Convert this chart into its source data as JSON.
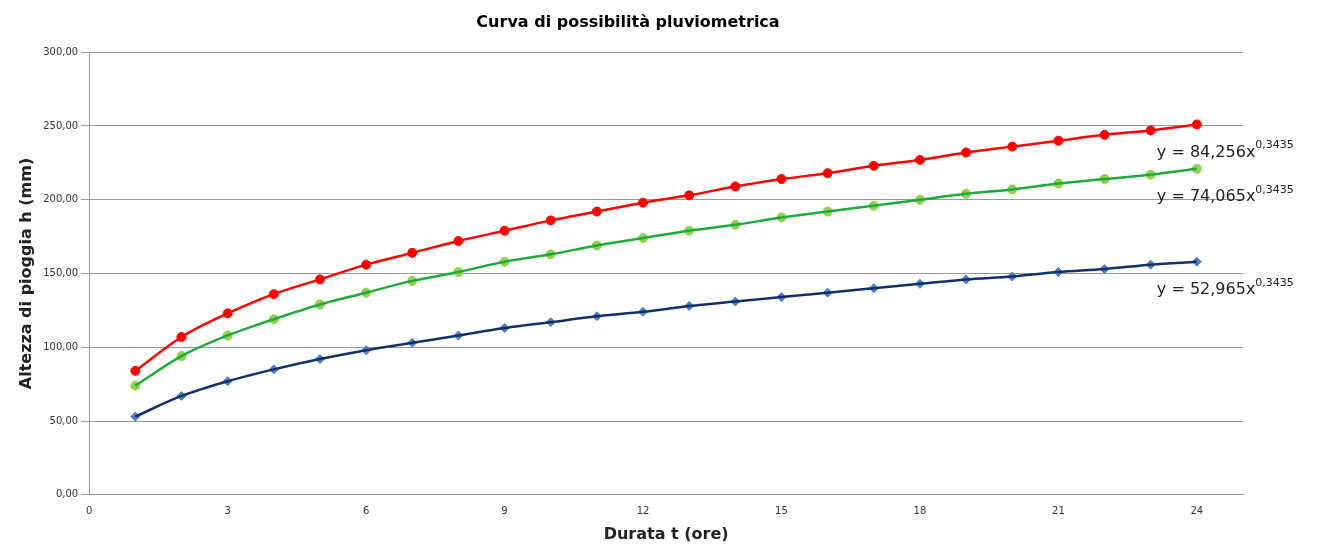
{
  "chart_data": {
    "type": "scatter",
    "title": "Curva di possibilità pluviometrica",
    "xlabel": "Durata t (ore)",
    "ylabel": "Altezza di pioggia h (mm)",
    "x": [
      1,
      2,
      3,
      4,
      5,
      6,
      7,
      8,
      9,
      10,
      11,
      12,
      13,
      14,
      15,
      16,
      17,
      18,
      19,
      20,
      21,
      22,
      23,
      24
    ],
    "series": [
      {
        "type": "line",
        "color": "#ff0000",
        "marker": "none",
        "values": [
          84,
          107,
          123,
          136,
          146,
          156,
          164,
          172,
          179,
          186,
          192,
          198,
          203,
          209,
          214,
          218,
          223,
          227,
          232,
          236,
          240,
          244,
          247,
          251
        ]
      },
      {
        "color": "#ff0000",
        "marker": "circle",
        "values": [
          84,
          107,
          123,
          136,
          146,
          156,
          164,
          172,
          179,
          186,
          192,
          198,
          203,
          209,
          214,
          218,
          223,
          227,
          232,
          236,
          240,
          244,
          247,
          251
        ]
      },
      {
        "type": "line",
        "color": "#1faa3c",
        "marker": "none",
        "values": [
          74,
          94,
          108,
          119,
          129,
          137,
          145,
          151,
          158,
          163,
          169,
          174,
          179,
          183,
          188,
          192,
          196,
          200,
          204,
          207,
          211,
          214,
          217,
          221
        ]
      },
      {
        "color": "#92d050",
        "marker": "circle",
        "values": [
          74,
          94,
          108,
          119,
          129,
          137,
          145,
          151,
          158,
          163,
          169,
          174,
          179,
          183,
          188,
          192,
          196,
          200,
          204,
          207,
          211,
          214,
          217,
          221
        ]
      },
      {
        "type": "line",
        "color": "#13306e",
        "marker": "none",
        "values": [
          53,
          67,
          77,
          85,
          92,
          98,
          103,
          108,
          113,
          117,
          121,
          124,
          128,
          131,
          134,
          137,
          140,
          143,
          146,
          148,
          151,
          153,
          156,
          158
        ]
      },
      {
        "color": "#4f81bd",
        "marker": "diamond",
        "values": [
          53,
          67,
          77,
          85,
          92,
          98,
          103,
          108,
          113,
          117,
          121,
          124,
          128,
          131,
          134,
          137,
          140,
          143,
          146,
          148,
          151,
          153,
          156,
          158
        ]
      }
    ],
    "annotations": [
      "y = 84,256x$^{0,3435}$",
      "y = 74,065x$^{0,3435}$",
      "y = 52,965x$^{0,3435}$"
    ],
    "xlim": [
      0,
      25
    ],
    "xticks": [
      0,
      3,
      6,
      9,
      12,
      15,
      18,
      21,
      24
    ],
    "ylim": [
      0,
      300
    ],
    "yticks": [
      {
        "value": 0,
        "label": "0,00"
      },
      {
        "value": 50,
        "label": "50,00"
      },
      {
        "value": 100,
        "label": "100,00"
      },
      {
        "value": 150,
        "label": "150,00"
      },
      {
        "value": 200,
        "label": "200,00"
      },
      {
        "value": 250,
        "label": "250,00"
      },
      {
        "value": 300,
        "label": "300,00"
      }
    ],
    "grid": "y",
    "legend": false
  }
}
